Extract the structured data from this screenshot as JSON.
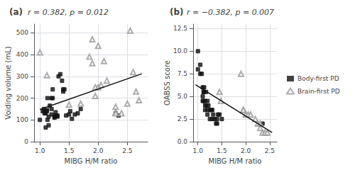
{
  "chart_data": [
    {
      "type": "scatter",
      "title": "(a)",
      "subtitle": "r = 0.382, p = 0.012",
      "xlabel": "MIBG H/M ratio",
      "ylabel": "Voiding volume (mL)",
      "xlim": [
        0.9,
        2.85
      ],
      "ylim": [
        0,
        540
      ],
      "xticks": [
        {
          "value": 1.0,
          "label": "1.0"
        },
        1.5,
        {
          "value": 2.0,
          "label": "2.0"
        },
        2.5
      ],
      "yticks": [
        0,
        100,
        200,
        300,
        400,
        500
      ],
      "grid": true,
      "series": [
        {
          "name": "Body-first PD",
          "color": "#111111",
          "marker": "square",
          "x": [
            1.0,
            1.05,
            1.07,
            1.08,
            1.1,
            1.1,
            1.12,
            1.12,
            1.13,
            1.13,
            1.15,
            1.15,
            1.17,
            1.2,
            1.2,
            1.2,
            1.22,
            1.22,
            1.25,
            1.25,
            1.27,
            1.27,
            1.3,
            1.3,
            1.32,
            1.35,
            1.38,
            1.4,
            1.4,
            1.42,
            1.45,
            1.5,
            1.52,
            1.55,
            1.6,
            1.65,
            1.7,
            2.3,
            2.35
          ],
          "values": [
            100,
            140,
            150,
            130,
            65,
            130,
            140,
            145,
            200,
            100,
            75,
            115,
            165,
            200,
            150,
            125,
            200,
            240,
            110,
            115,
            120,
            135,
            115,
            120,
            300,
            310,
            280,
            230,
            240,
            240,
            120,
            125,
            140,
            105,
            125,
            130,
            150,
            130,
            120
          ]
        },
        {
          "name": "Brain-first PD",
          "color": "#999999",
          "marker": "open_triangle",
          "x": [
            1.0,
            1.12,
            1.5,
            1.7,
            1.85,
            1.9,
            1.9,
            1.95,
            1.95,
            2.0,
            2.0,
            2.05,
            2.1,
            2.15,
            2.3,
            2.3,
            2.3,
            2.4,
            2.5,
            2.55,
            2.6,
            2.65,
            2.7
          ],
          "values": [
            410,
            305,
            170,
            175,
            390,
            470,
            360,
            210,
            250,
            440,
            250,
            260,
            370,
            280,
            160,
            135,
            130,
            130,
            175,
            510,
            320,
            230,
            190
          ]
        },
        {
          "type": "line",
          "color": "#111111",
          "x": [
            1.0,
            2.75
          ],
          "values": [
            148,
            312
          ]
        }
      ]
    },
    {
      "type": "scatter",
      "title": "(b)",
      "subtitle": "r = −0.382, p = 0.007",
      "xlabel": "MIBG H/M ratio",
      "ylabel": "OABSS score",
      "xlim": [
        0.9,
        2.65
      ],
      "ylim": [
        0,
        13
      ],
      "xticks": [
        {
          "value": 1.0,
          "label": "1.0"
        },
        1.5,
        {
          "value": 2.0,
          "label": "2.0"
        },
        2.5
      ],
      "yticks": [
        {
          "value": 0.0,
          "label": "0.0"
        },
        2.5,
        {
          "value": 5.0,
          "label": "5.0"
        },
        7.5,
        {
          "value": 10.0,
          "label": "10.0"
        },
        12.5
      ],
      "grid": true,
      "legend": "right",
      "series": [
        {
          "name": "Body-first PD",
          "color": "#111111",
          "marker": "square",
          "x": [
            1.0,
            1.0,
            1.05,
            1.05,
            1.08,
            1.1,
            1.1,
            1.1,
            1.12,
            1.12,
            1.12,
            1.13,
            1.15,
            1.15,
            1.15,
            1.17,
            1.18,
            1.2,
            1.2,
            1.2,
            1.22,
            1.25,
            1.25,
            1.28,
            1.3,
            1.3,
            1.32,
            1.35,
            1.38,
            1.4,
            1.4,
            1.42,
            1.45,
            1.5,
            2.35
          ],
          "values": [
            10.0,
            8.0,
            8.5,
            7.5,
            7.5,
            5.0,
            4.5,
            6.0,
            5.5,
            5.5,
            4.5,
            6.0,
            4.0,
            4.5,
            3.5,
            5.5,
            4.0,
            4.5,
            3.5,
            3.0,
            4.0,
            3.5,
            2.5,
            3.5,
            3.5,
            2.5,
            3.0,
            2.5,
            2.0,
            2.0,
            2.5,
            3.0,
            3.0,
            2.5,
            2.0
          ]
        },
        {
          "name": "Brain-first PD",
          "color": "#999999",
          "marker": "open_triangle",
          "x": [
            1.45,
            1.48,
            1.9,
            1.95,
            1.95,
            2.0,
            2.05,
            2.1,
            2.2,
            2.25,
            2.3,
            2.3,
            2.35,
            2.4,
            2.45
          ],
          "values": [
            5.5,
            4.5,
            7.5,
            3.5,
            3.5,
            3.0,
            3.0,
            3.0,
            2.5,
            2.0,
            2.0,
            1.5,
            1.0,
            1.0,
            1.0
          ]
        },
        {
          "type": "line",
          "color": "#111111",
          "x": [
            0.95,
            2.55
          ],
          "values": [
            6.3,
            1.0
          ]
        }
      ]
    }
  ]
}
